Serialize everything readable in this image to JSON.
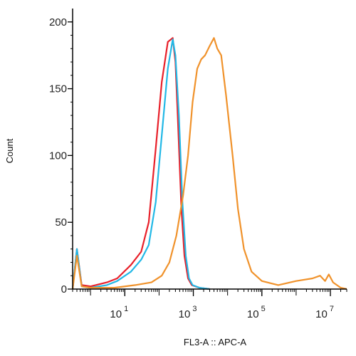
{
  "chart_data": {
    "type": "line",
    "title": "",
    "xlabel": "FL3-A :: APC-A",
    "ylabel": "Count",
    "x_scale": "log",
    "xlim": [
      0.3,
      30000000
    ],
    "ylim": [
      0,
      210
    ],
    "y_ticks": [
      0,
      50,
      100,
      150,
      200
    ],
    "x_ticks": [
      {
        "value": 10,
        "base": "10",
        "exp": "1"
      },
      {
        "value": 1000,
        "base": "10",
        "exp": "3"
      },
      {
        "value": 100000,
        "base": "10",
        "exp": "5"
      },
      {
        "value": 10000000,
        "base": "10",
        "exp": "7"
      }
    ],
    "grid": false,
    "legend": "none",
    "series": [
      {
        "color": "#e8202a",
        "points": [
          [
            0.3,
            0
          ],
          [
            0.4,
            30
          ],
          [
            0.55,
            3
          ],
          [
            1,
            2
          ],
          [
            3,
            5
          ],
          [
            6,
            8
          ],
          [
            15,
            18
          ],
          [
            30,
            28
          ],
          [
            50,
            50
          ],
          [
            80,
            105
          ],
          [
            120,
            155
          ],
          [
            180,
            185
          ],
          [
            250,
            188
          ],
          [
            300,
            170
          ],
          [
            350,
            130
          ],
          [
            450,
            60
          ],
          [
            550,
            25
          ],
          [
            700,
            8
          ],
          [
            900,
            3
          ],
          [
            1500,
            1
          ],
          [
            3000,
            0
          ]
        ]
      },
      {
        "color": "#22b8e6",
        "points": [
          [
            0.3,
            0
          ],
          [
            0.4,
            30
          ],
          [
            0.55,
            2
          ],
          [
            1,
            1
          ],
          [
            3,
            3
          ],
          [
            6,
            6
          ],
          [
            15,
            13
          ],
          [
            30,
            22
          ],
          [
            50,
            33
          ],
          [
            80,
            65
          ],
          [
            120,
            115
          ],
          [
            180,
            165
          ],
          [
            250,
            187
          ],
          [
            300,
            175
          ],
          [
            380,
            130
          ],
          [
            480,
            65
          ],
          [
            600,
            25
          ],
          [
            750,
            8
          ],
          [
            950,
            3
          ],
          [
            1500,
            1
          ],
          [
            3000,
            0
          ]
        ]
      },
      {
        "color": "#f0922b",
        "points": [
          [
            0.3,
            0
          ],
          [
            0.4,
            25
          ],
          [
            0.55,
            2
          ],
          [
            1,
            1
          ],
          [
            5,
            1
          ],
          [
            20,
            3
          ],
          [
            60,
            5
          ],
          [
            120,
            10
          ],
          [
            200,
            20
          ],
          [
            320,
            40
          ],
          [
            500,
            70
          ],
          [
            700,
            100
          ],
          [
            950,
            140
          ],
          [
            1300,
            165
          ],
          [
            1700,
            172
          ],
          [
            2200,
            175
          ],
          [
            3000,
            182
          ],
          [
            4000,
            188
          ],
          [
            5000,
            180
          ],
          [
            6500,
            175
          ],
          [
            9000,
            145
          ],
          [
            14000,
            100
          ],
          [
            20000,
            60
          ],
          [
            30000,
            30
          ],
          [
            50000,
            13
          ],
          [
            100000,
            6
          ],
          [
            300000,
            3
          ],
          [
            1000000,
            6
          ],
          [
            3000000,
            8
          ],
          [
            5000000,
            10
          ],
          [
            7000000,
            6
          ],
          [
            9000000,
            11
          ],
          [
            12000000,
            5
          ],
          [
            20000000,
            1
          ],
          [
            30000000,
            0
          ]
        ]
      }
    ]
  }
}
